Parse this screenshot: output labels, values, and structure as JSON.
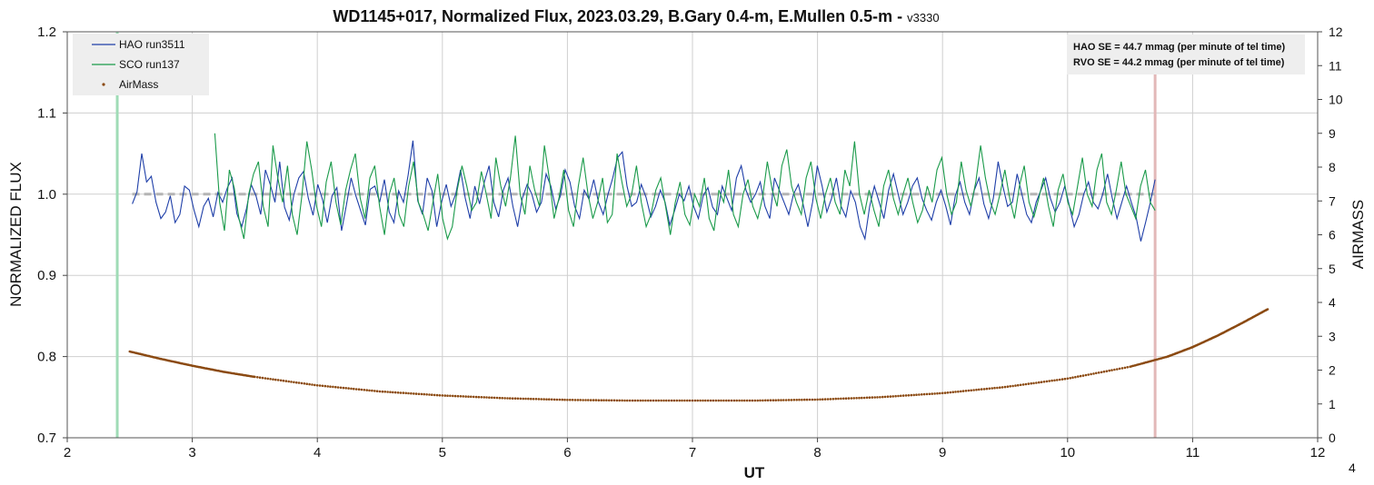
{
  "chart_data": {
    "type": "line",
    "title": "WD1145+017, Normalized Flux, 2023.03.29, B.Gary 0.4-m, E.Mullen 0.5-m - ",
    "title_version": "v3330",
    "xlabel": "UT",
    "ylabel": "NORMALIZED FLUX",
    "y2label": "AIRMASS",
    "xlim": [
      2,
      12
    ],
    "ylim": [
      0.7,
      1.2
    ],
    "y2lim": [
      0,
      12
    ],
    "x_ticks": [
      "2",
      "3",
      "4",
      "5",
      "6",
      "7",
      "8",
      "9",
      "10",
      "11",
      "12"
    ],
    "y_ticks": [
      "0.7",
      "0.8",
      "0.9",
      "1.0",
      "1.1",
      "1.2"
    ],
    "y2_ticks": [
      "0",
      "1",
      "2",
      "3",
      "4",
      "5",
      "6",
      "7",
      "8",
      "9",
      "10",
      "11",
      "12"
    ],
    "grid": true,
    "legend_position": "top-left",
    "corner_mark": "4",
    "annotations": [
      "HAO SE = 44.7 mmag (per minute of tel time)",
      "RVO SE = 44.2 mmag (per minute of tel time)"
    ],
    "reference_lines": {
      "flux_level": 1.0,
      "start_ut": 2.4,
      "end_ut": 10.7
    },
    "series": [
      {
        "name": "HAO run3511",
        "color": "#1f3fa8",
        "axis": "left",
        "x_range": [
          2.52,
          10.7
        ],
        "values": [
          0.988,
          1.003,
          1.05,
          1.015,
          1.022,
          0.99,
          0.97,
          0.978,
          0.998,
          0.965,
          0.975,
          1.01,
          1.005,
          0.98,
          0.96,
          0.985,
          0.995,
          0.972,
          1.002,
          0.99,
          1.008,
          1.02,
          0.976,
          0.96,
          0.982,
          1.012,
          0.998,
          0.975,
          1.03,
          1.012,
          0.99,
          1.04,
          0.984,
          0.968,
          1.0,
          1.02,
          1.028,
          0.995,
          0.974,
          1.012,
          0.993,
          0.965,
          0.998,
          1.008,
          0.955,
          0.986,
          1.02,
          0.998,
          0.98,
          0.962,
          1.006,
          1.01,
          0.99,
          1.018,
          0.978,
          0.965,
          1.004,
          0.99,
          1.024,
          1.066,
          0.992,
          0.975,
          1.02,
          1.004,
          0.96,
          0.99,
          1.012,
          0.985,
          1.0,
          1.03,
          0.995,
          0.97,
          1.01,
          0.988,
          1.015,
          1.035,
          0.99,
          0.972,
          1.005,
          1.02,
          0.985,
          0.96,
          0.995,
          1.012,
          1.0,
          0.978,
          0.99,
          1.025,
          1.01,
          0.982,
          0.998,
          1.03,
          1.015,
          0.985,
          0.97,
          1.005,
          0.994,
          1.018,
          0.99,
          0.975,
          1.0,
          1.02,
          1.045,
          1.052,
          1.01,
          0.985,
          0.99,
          1.012,
          0.996,
          0.972,
          0.985,
          1.005,
          0.99,
          0.962,
          0.98,
          1.0,
          0.992,
          1.01,
          0.985,
          0.97,
          0.998,
          1.008,
          0.984,
          0.975,
          1.01,
          0.995,
          0.98,
          1.02,
          1.035,
          1.005,
          0.99,
          1.0,
          1.015,
          0.985,
          0.97,
          1.02,
          1.005,
          0.99,
          0.975,
          1.0,
          1.012,
          0.988,
          0.96,
          0.99,
          1.035,
          1.01,
          0.978,
          0.995,
          1.02,
          0.985,
          0.972,
          1.004,
          0.99,
          0.96,
          0.945,
          0.985,
          1.01,
          0.99,
          0.97,
          1.005,
          1.025,
          1.0,
          0.975,
          0.99,
          1.01,
          1.02,
          0.995,
          0.98,
          0.968,
          0.99,
          1.005,
          0.985,
          0.962,
          0.998,
          1.015,
          0.99,
          0.975,
          1.005,
          1.02,
          0.988,
          0.97,
          0.995,
          1.04,
          1.01,
          0.985,
          0.99,
          1.025,
          1.0,
          0.975,
          0.965,
          0.99,
          1.005,
          1.02,
          0.995,
          0.978,
          0.99,
          1.01,
          0.985,
          0.96,
          0.975,
          1.0,
          1.015,
          0.99,
          0.982,
          1.0,
          1.025,
          0.995,
          0.97,
          0.99,
          1.01,
          0.99,
          0.972,
          0.942,
          0.965,
          0.99,
          1.018
        ]
      },
      {
        "name": "SCO run137",
        "color": "#1a9a4a",
        "axis": "left",
        "x_range": [
          3.18,
          10.7
        ],
        "values": [
          1.075,
          0.99,
          0.955,
          1.03,
          1.008,
          0.97,
          0.945,
          1.0,
          1.025,
          1.04,
          0.985,
          0.96,
          1.06,
          1.02,
          0.99,
          1.035,
          0.975,
          0.95,
          1.0,
          1.065,
          1.03,
          0.985,
          0.96,
          1.015,
          1.04,
          0.99,
          0.962,
          1.005,
          1.03,
          1.05,
          0.995,
          0.97,
          1.02,
          1.035,
          0.985,
          0.95,
          1.0,
          1.02,
          0.975,
          0.96,
          1.01,
          1.04,
          0.99,
          0.975,
          0.955,
          0.99,
          1.025,
          0.97,
          0.945,
          0.96,
          1.005,
          1.035,
          1.01,
          0.98,
          0.99,
          1.028,
          1.0,
          0.97,
          1.045,
          1.01,
          0.985,
          1.02,
          1.072,
          1.0,
          0.975,
          1.035,
          1.005,
          0.985,
          1.06,
          1.02,
          0.97,
          0.995,
          1.03,
          0.98,
          0.96,
          1.01,
          1.045,
          1.0,
          0.97,
          0.99,
          1.02,
          0.965,
          0.975,
          1.05,
          1.015,
          0.985,
          1.0,
          1.035,
          0.99,
          0.96,
          0.975,
          1.005,
          1.02,
          0.985,
          0.95,
          0.99,
          1.015,
          0.975,
          0.962,
          1.0,
          0.985,
          1.02,
          0.97,
          0.955,
          1.005,
          0.99,
          1.03,
          0.975,
          0.96,
          1.0,
          1.018,
          0.985,
          0.97,
          0.995,
          1.04,
          1.005,
          0.985,
          1.035,
          1.055,
          1.01,
          0.99,
          0.975,
          1.02,
          1.04,
          0.995,
          0.97,
          1.0,
          1.02,
          0.99,
          0.975,
          1.03,
          1.01,
          1.065,
          1.0,
          0.975,
          1.005,
          0.98,
          0.96,
          1.01,
          1.03,
          0.995,
          0.975,
          1.0,
          1.02,
          0.99,
          0.965,
          0.98,
          1.01,
          0.99,
          1.03,
          1.045,
          1.0,
          0.975,
          0.99,
          1.04,
          1.005,
          0.985,
          1.015,
          1.06,
          1.02,
          0.99,
          0.975,
          1.0,
          1.03,
          0.995,
          0.97,
          1.01,
          1.035,
          0.99,
          0.972,
          0.995,
          1.02,
          0.985,
          0.96,
          1.005,
          1.025,
          0.99,
          0.975,
          1.01,
          1.045,
          1.0,
          0.985,
          1.03,
          1.05,
          0.99,
          0.975,
          1.005,
          1.04,
          1.0,
          0.985,
          0.97,
          1.01,
          1.03,
          0.99,
          0.98
        ]
      },
      {
        "name": "AirMass",
        "color": "#8b4a12",
        "axis": "right",
        "marker": "dot",
        "x": [
          2.5,
          2.75,
          3.0,
          3.25,
          3.5,
          4.0,
          4.5,
          5.0,
          5.5,
          6.0,
          6.5,
          7.0,
          7.5,
          8.0,
          8.5,
          9.0,
          9.5,
          10.0,
          10.5,
          10.8,
          11.0,
          11.2,
          11.4,
          11.6
        ],
        "values": [
          2.55,
          2.33,
          2.13,
          1.95,
          1.8,
          1.55,
          1.37,
          1.25,
          1.17,
          1.12,
          1.1,
          1.1,
          1.1,
          1.13,
          1.2,
          1.32,
          1.5,
          1.75,
          2.1,
          2.4,
          2.68,
          3.02,
          3.4,
          3.8
        ]
      }
    ]
  }
}
